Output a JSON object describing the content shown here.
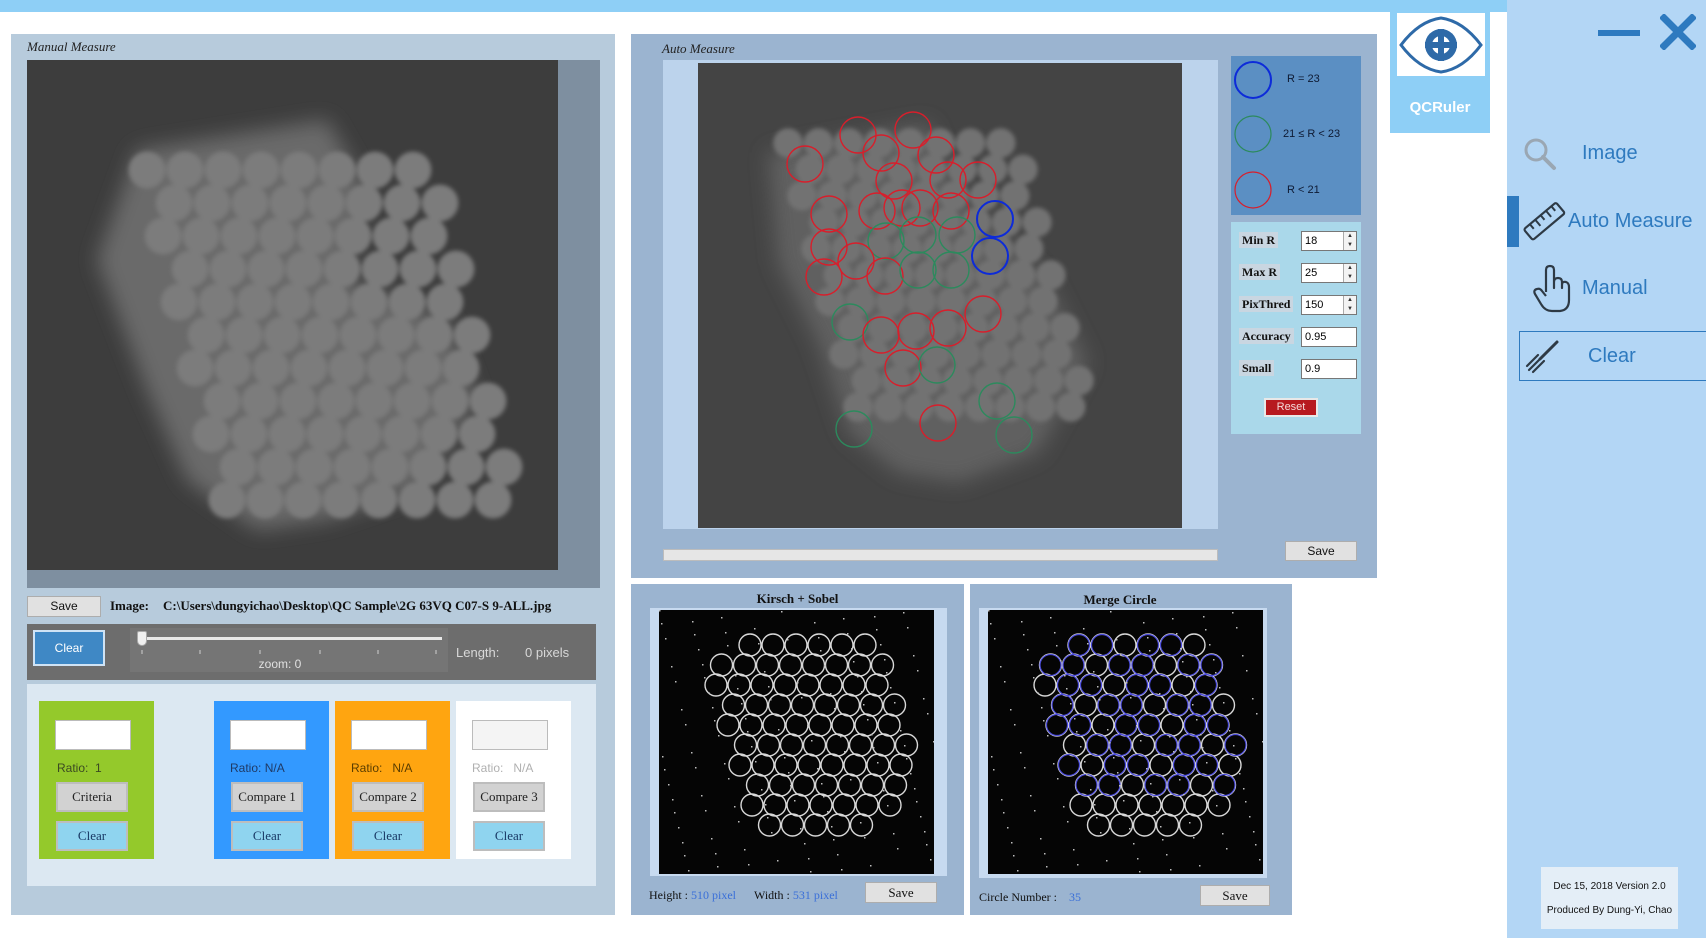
{
  "manual": {
    "title": "Manual Measure",
    "save_label": "Save",
    "image_label": "Image:",
    "image_path": "C:\\Users\\dungyichao\\Desktop\\QC Sample\\2G 63VQ C07-S 9-ALL.jpg",
    "clear_label": "Clear",
    "zoom_text": "zoom: 0",
    "length_label": "Length:",
    "length_value": "0 pixels",
    "zoom_value": 0
  },
  "compare": [
    {
      "ratio_label": "Ratio:",
      "ratio_value": "1",
      "button_label": "Criteria",
      "clear_label": "Clear",
      "bg": "#94c92b"
    },
    {
      "ratio_label": "Ratio:",
      "ratio_value": "N/A",
      "button_label": "Compare 1",
      "clear_label": "Clear",
      "bg": "#3399ff"
    },
    {
      "ratio_label": "Ratio:",
      "ratio_value": "N/A",
      "button_label": "Compare 2",
      "clear_label": "Clear",
      "bg": "#ffa510"
    },
    {
      "ratio_label": "Ratio:",
      "ratio_value": "N/A",
      "button_label": "Compare 3",
      "clear_label": "Clear",
      "bg": "#ffffff"
    }
  ],
  "auto": {
    "title": "Auto Measure",
    "legend": [
      {
        "text": "R =  23",
        "color": "#0d2bd9"
      },
      {
        "text": "21  ≤ R <  23",
        "color": "#2c8a5d"
      },
      {
        "text": "R <  21",
        "color": "#d81e2b"
      }
    ],
    "params": [
      {
        "label": "Min R",
        "value": "18",
        "spin": true
      },
      {
        "label": "Max R",
        "value": "25",
        "spin": true
      },
      {
        "label": "PixThred",
        "value": "150",
        "spin": true
      },
      {
        "label": "Accuracy",
        "value": "0.95",
        "spin": false
      },
      {
        "label": "Small",
        "value": "0.9",
        "spin": false
      }
    ],
    "reset_label": "Reset",
    "save_label": "Save",
    "progress": 0
  },
  "kirsch": {
    "title": "Kirsch + Sobel",
    "height_label": "Height :",
    "height_value": "510",
    "height_unit": "pixel",
    "width_label": "Width :",
    "width_value": "531",
    "width_unit": "pixel",
    "save_label": "Save"
  },
  "merge": {
    "title": "Merge Circle",
    "count_label": "Circle Number :",
    "count_value": "35",
    "save_label": "Save"
  },
  "app": {
    "logo_text": "QCRuler",
    "nav": [
      {
        "label": "Image",
        "icon": "magnifier-icon"
      },
      {
        "label": "Auto Measure",
        "icon": "ruler-icon"
      },
      {
        "label": "Manual",
        "icon": "hand-pointer-icon"
      },
      {
        "label": "Clear",
        "icon": "broom-icon"
      }
    ],
    "version": "Dec 15, 2018 Version 2.0",
    "author": "Produced By Dung-Yi, Chao",
    "colors": {
      "accent": "#2e7abf",
      "sidebar": "#b3d6f5",
      "top_bar": "#8ecff6"
    }
  }
}
